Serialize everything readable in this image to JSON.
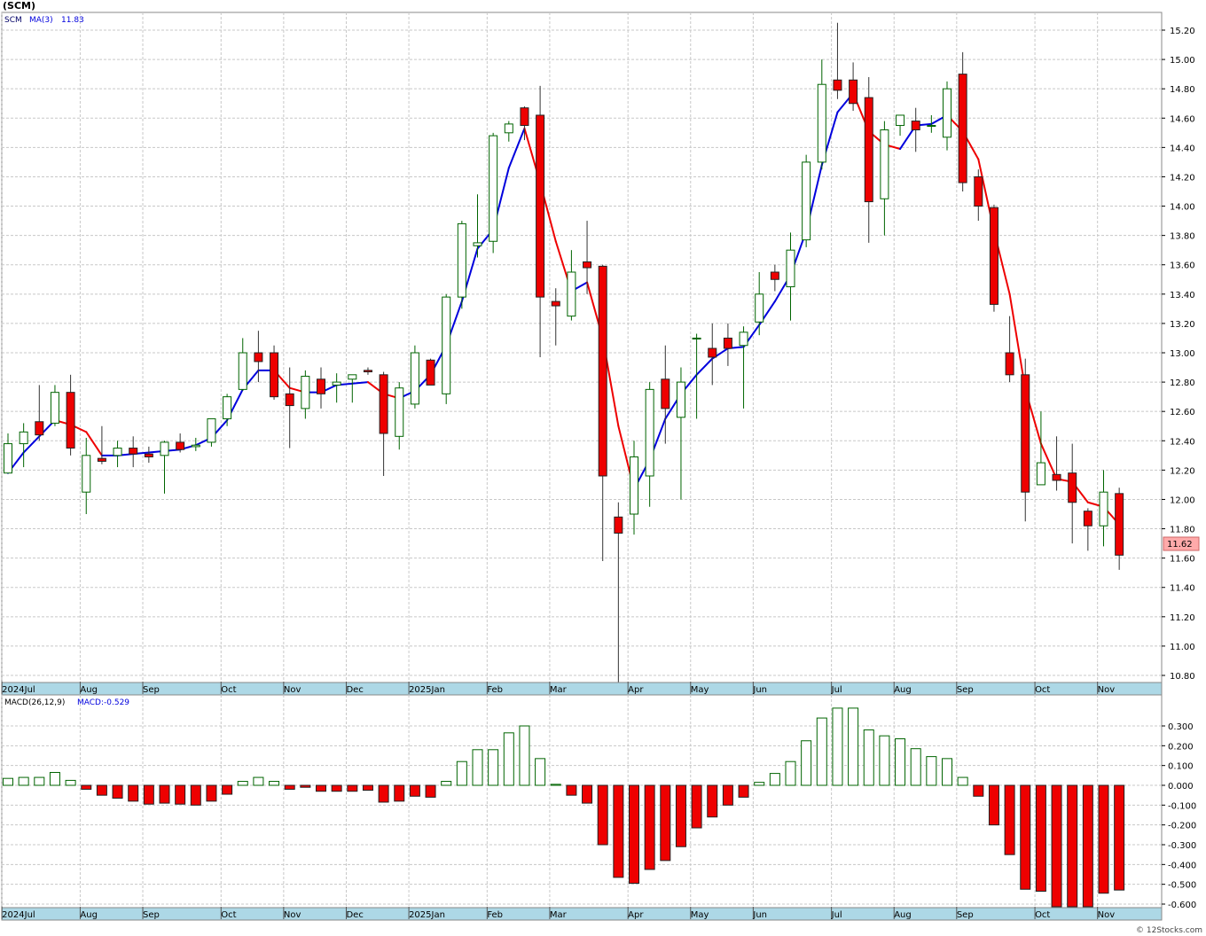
{
  "chart_data": {
    "type": "candlestick",
    "symbol_title": "(SCM)",
    "price_panel": {
      "legend": {
        "symbol": "SCM",
        "ma_label": "MA(3)",
        "ma_value": "11.83"
      },
      "ylim": [
        10.7,
        15.3
      ],
      "y_ticks": [
        "10.80",
        "11.00",
        "11.20",
        "11.40",
        "11.60",
        "11.80",
        "12.00",
        "12.20",
        "12.40",
        "12.60",
        "12.80",
        "13.00",
        "13.20",
        "13.40",
        "13.60",
        "13.80",
        "14.00",
        "14.20",
        "14.40",
        "14.60",
        "14.80",
        "15.00",
        "15.20"
      ],
      "last_price_label": "11.62",
      "up_color": "#006400",
      "down_color": "#ee0000",
      "ma_up_color": "#0000dd",
      "ma_down_color": "#ee0000",
      "candles": [
        {
          "o": 12.18,
          "h": 12.45,
          "l": 12.18,
          "c": 12.38
        },
        {
          "o": 12.38,
          "h": 12.52,
          "l": 12.22,
          "c": 12.46
        },
        {
          "o": 12.53,
          "h": 12.78,
          "l": 12.4,
          "c": 12.44
        },
        {
          "o": 12.52,
          "h": 12.78,
          "l": 12.5,
          "c": 12.73
        },
        {
          "o": 12.73,
          "h": 12.85,
          "l": 12.3,
          "c": 12.35
        },
        {
          "o": 12.05,
          "h": 12.42,
          "l": 11.9,
          "c": 12.3
        },
        {
          "o": 12.28,
          "h": 12.5,
          "l": 12.24,
          "c": 12.26
        },
        {
          "o": 12.3,
          "h": 12.4,
          "l": 12.22,
          "c": 12.35
        },
        {
          "o": 12.35,
          "h": 12.43,
          "l": 12.22,
          "c": 12.31
        },
        {
          "o": 12.31,
          "h": 12.36,
          "l": 12.25,
          "c": 12.29
        },
        {
          "o": 12.3,
          "h": 12.4,
          "l": 12.04,
          "c": 12.39
        },
        {
          "o": 12.39,
          "h": 12.45,
          "l": 12.32,
          "c": 12.34
        },
        {
          "o": 12.36,
          "h": 12.42,
          "l": 12.33,
          "c": 12.37
        },
        {
          "o": 12.39,
          "h": 12.55,
          "l": 12.36,
          "c": 12.55
        },
        {
          "o": 12.55,
          "h": 12.72,
          "l": 12.5,
          "c": 12.7
        },
        {
          "o": 12.75,
          "h": 13.1,
          "l": 12.74,
          "c": 13.0
        },
        {
          "o": 13.0,
          "h": 13.15,
          "l": 12.8,
          "c": 12.94
        },
        {
          "o": 13.0,
          "h": 13.05,
          "l": 12.68,
          "c": 12.7
        },
        {
          "o": 12.72,
          "h": 12.9,
          "l": 12.35,
          "c": 12.64
        },
        {
          "o": 12.62,
          "h": 12.88,
          "l": 12.55,
          "c": 12.84
        },
        {
          "o": 12.82,
          "h": 12.9,
          "l": 12.62,
          "c": 12.72
        },
        {
          "o": 12.78,
          "h": 12.86,
          "l": 12.66,
          "c": 12.8
        },
        {
          "o": 12.82,
          "h": 12.85,
          "l": 12.66,
          "c": 12.85
        },
        {
          "o": 12.88,
          "h": 12.9,
          "l": 12.85,
          "c": 12.87
        },
        {
          "o": 12.85,
          "h": 12.87,
          "l": 12.16,
          "c": 12.45
        },
        {
          "o": 12.43,
          "h": 12.8,
          "l": 12.34,
          "c": 12.76
        },
        {
          "o": 12.65,
          "h": 13.05,
          "l": 12.62,
          "c": 13.0
        },
        {
          "o": 12.95,
          "h": 12.96,
          "l": 12.78,
          "c": 12.78
        },
        {
          "o": 12.72,
          "h": 13.4,
          "l": 12.65,
          "c": 13.38
        },
        {
          "o": 13.38,
          "h": 13.9,
          "l": 13.3,
          "c": 13.88
        },
        {
          "o": 13.73,
          "h": 14.08,
          "l": 13.65,
          "c": 13.75
        },
        {
          "o": 13.76,
          "h": 14.5,
          "l": 13.68,
          "c": 14.48
        },
        {
          "o": 14.5,
          "h": 14.58,
          "l": 14.44,
          "c": 14.56
        },
        {
          "o": 14.67,
          "h": 14.68,
          "l": 14.45,
          "c": 14.55
        },
        {
          "o": 14.62,
          "h": 14.82,
          "l": 12.97,
          "c": 13.38
        },
        {
          "o": 13.35,
          "h": 13.44,
          "l": 13.05,
          "c": 13.32
        },
        {
          "o": 13.25,
          "h": 13.7,
          "l": 13.22,
          "c": 13.55
        },
        {
          "o": 13.62,
          "h": 13.9,
          "l": 13.4,
          "c": 13.58
        },
        {
          "o": 13.59,
          "h": 13.6,
          "l": 11.58,
          "c": 12.16
        },
        {
          "o": 11.88,
          "h": 11.98,
          "l": 10.7,
          "c": 11.77
        },
        {
          "o": 11.9,
          "h": 12.4,
          "l": 11.76,
          "c": 12.29
        },
        {
          "o": 12.16,
          "h": 12.8,
          "l": 11.95,
          "c": 12.75
        },
        {
          "o": 12.82,
          "h": 13.05,
          "l": 12.38,
          "c": 12.62
        },
        {
          "o": 12.56,
          "h": 12.9,
          "l": 12.0,
          "c": 12.8
        },
        {
          "o": 13.1,
          "h": 13.13,
          "l": 12.55,
          "c": 13.1
        },
        {
          "o": 13.03,
          "h": 13.2,
          "l": 12.78,
          "c": 12.97
        },
        {
          "o": 13.1,
          "h": 13.2,
          "l": 12.91,
          "c": 13.03
        },
        {
          "o": 13.05,
          "h": 13.18,
          "l": 12.62,
          "c": 13.14
        },
        {
          "o": 13.21,
          "h": 13.55,
          "l": 13.12,
          "c": 13.4
        },
        {
          "o": 13.55,
          "h": 13.6,
          "l": 13.42,
          "c": 13.5
        },
        {
          "o": 13.45,
          "h": 13.82,
          "l": 13.22,
          "c": 13.7
        },
        {
          "o": 13.77,
          "h": 14.35,
          "l": 13.72,
          "c": 14.3
        },
        {
          "o": 14.3,
          "h": 15.0,
          "l": 14.25,
          "c": 14.83
        },
        {
          "o": 14.86,
          "h": 15.25,
          "l": 14.73,
          "c": 14.79
        },
        {
          "o": 14.86,
          "h": 14.98,
          "l": 14.65,
          "c": 14.7
        },
        {
          "o": 14.74,
          "h": 14.88,
          "l": 13.75,
          "c": 14.03
        },
        {
          "o": 14.05,
          "h": 14.58,
          "l": 13.8,
          "c": 14.52
        },
        {
          "o": 14.55,
          "h": 14.62,
          "l": 14.48,
          "c": 14.62
        },
        {
          "o": 14.58,
          "h": 14.67,
          "l": 14.37,
          "c": 14.52
        },
        {
          "o": 14.55,
          "h": 14.62,
          "l": 14.5,
          "c": 14.55
        },
        {
          "o": 14.47,
          "h": 14.85,
          "l": 14.38,
          "c": 14.8
        },
        {
          "o": 14.9,
          "h": 15.05,
          "l": 14.1,
          "c": 14.16
        },
        {
          "o": 14.2,
          "h": 14.25,
          "l": 13.9,
          "c": 14.0
        },
        {
          "o": 13.99,
          "h": 14.01,
          "l": 13.28,
          "c": 13.33
        },
        {
          "o": 13.0,
          "h": 13.25,
          "l": 12.8,
          "c": 12.85
        },
        {
          "o": 12.85,
          "h": 12.96,
          "l": 11.85,
          "c": 12.05
        },
        {
          "o": 12.1,
          "h": 12.6,
          "l": 12.1,
          "c": 12.25
        },
        {
          "o": 12.17,
          "h": 12.43,
          "l": 12.06,
          "c": 12.13
        },
        {
          "o": 12.18,
          "h": 12.38,
          "l": 11.7,
          "c": 11.98
        },
        {
          "o": 11.92,
          "h": 11.94,
          "l": 11.65,
          "c": 11.82
        },
        {
          "o": 11.82,
          "h": 12.2,
          "l": 11.68,
          "c": 12.05
        },
        {
          "o": 12.04,
          "h": 12.08,
          "l": 11.52,
          "c": 11.62
        }
      ],
      "ma3": [
        12.18,
        12.32,
        12.43,
        12.54,
        12.51,
        12.46,
        12.3,
        12.3,
        12.31,
        12.32,
        12.33,
        12.34,
        12.37,
        12.42,
        12.54,
        12.75,
        12.88,
        12.88,
        12.76,
        12.73,
        12.73,
        12.78,
        12.79,
        12.8,
        12.72,
        12.69,
        12.74,
        12.85,
        13.05,
        13.35,
        13.71,
        13.84,
        14.26,
        14.53,
        14.16,
        13.76,
        13.42,
        13.48,
        13.1,
        12.5,
        12.07,
        12.27,
        12.55,
        12.72,
        12.85,
        12.96,
        13.03,
        13.04,
        13.19,
        13.35,
        13.53,
        13.83,
        14.28,
        14.64,
        14.77,
        14.51,
        14.42,
        14.39,
        14.55,
        14.56,
        14.62,
        14.51,
        14.32,
        13.83,
        13.4,
        12.75,
        12.38,
        12.14,
        12.12,
        11.98,
        11.95,
        11.83
      ],
      "x_months": [
        {
          "label": "2024Jul",
          "index": 0
        },
        {
          "label": "Aug",
          "index": 5
        },
        {
          "label": "Sep",
          "index": 9
        },
        {
          "label": "Oct",
          "index": 14
        },
        {
          "label": "Nov",
          "index": 18
        },
        {
          "label": "Dec",
          "index": 22
        },
        {
          "label": "2025Jan",
          "index": 26
        },
        {
          "label": "Feb",
          "index": 31
        },
        {
          "label": "Mar",
          "index": 35
        },
        {
          "label": "Apr",
          "index": 40
        },
        {
          "label": "May",
          "index": 44
        },
        {
          "label": "Jun",
          "index": 48
        },
        {
          "label": "Jul",
          "index": 53
        },
        {
          "label": "Aug",
          "index": 57
        },
        {
          "label": "Sep",
          "index": 61
        },
        {
          "label": "Oct",
          "index": 66
        },
        {
          "label": "Nov",
          "index": 70
        }
      ]
    },
    "macd_panel": {
      "legend": {
        "label": "MACD(26,12,9)",
        "value_label": "MACD:-0.529"
      },
      "ylim": [
        -0.62,
        0.43
      ],
      "y_ticks": [
        "0.300",
        "0.200",
        "0.100",
        "0.000",
        "-0.100",
        "-0.200",
        "-0.300",
        "-0.400",
        "-0.500",
        "-0.600"
      ],
      "histogram": [
        0.035,
        0.04,
        0.04,
        0.065,
        0.025,
        -0.02,
        -0.05,
        -0.065,
        -0.08,
        -0.095,
        -0.09,
        -0.095,
        -0.1,
        -0.08,
        -0.045,
        0.02,
        0.04,
        0.02,
        -0.02,
        -0.01,
        -0.03,
        -0.03,
        -0.03,
        -0.025,
        -0.085,
        -0.08,
        -0.055,
        -0.06,
        0.02,
        0.12,
        0.18,
        0.18,
        0.265,
        0.3,
        0.135,
        0.005,
        -0.05,
        -0.09,
        -0.3,
        -0.465,
        -0.495,
        -0.425,
        -0.38,
        -0.31,
        -0.215,
        -0.16,
        -0.1,
        -0.06,
        0.015,
        0.06,
        0.12,
        0.225,
        0.34,
        0.39,
        0.39,
        0.28,
        0.25,
        0.235,
        0.185,
        0.145,
        0.135,
        0.04,
        -0.055,
        -0.2,
        -0.35,
        -0.525,
        -0.535,
        -0.62,
        -0.62,
        -0.62,
        -0.545,
        -0.529
      ]
    },
    "watermark": "© 12Stocks.com"
  }
}
